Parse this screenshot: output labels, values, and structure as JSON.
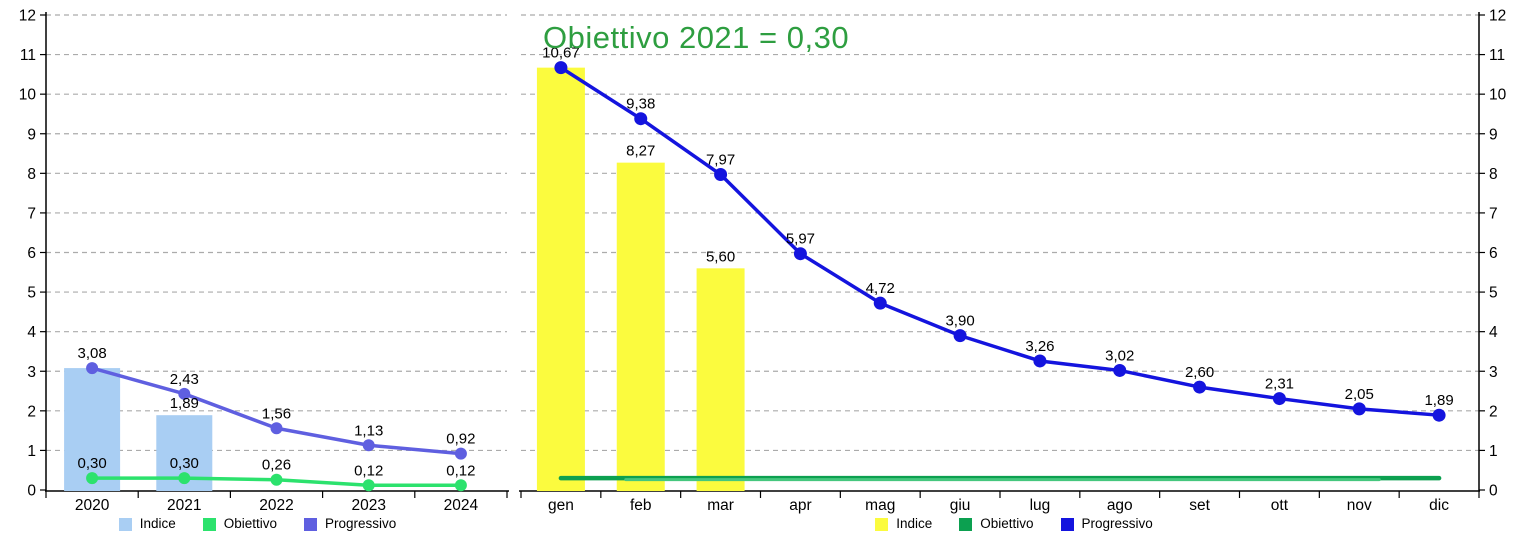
{
  "chart_data": [
    {
      "id": "yearly",
      "type": "combo-bar-line",
      "title": "",
      "categories": [
        "2020",
        "2021",
        "2022",
        "2023",
        "2024"
      ],
      "ylim": [
        0,
        12
      ],
      "yticks": [
        0,
        1,
        2,
        3,
        4,
        5,
        6,
        7,
        8,
        9,
        10,
        11,
        12
      ],
      "axis_side": "left",
      "grid": "dashed-horizontal",
      "legend_position": "bottom",
      "series": [
        {
          "name": "Indice",
          "type": "bar",
          "color": "#A9CEF3",
          "values": [
            3.08,
            1.89,
            null,
            null,
            null
          ],
          "labels": [
            "",
            "1,89",
            "",
            "",
            ""
          ]
        },
        {
          "name": "Obiettivo",
          "type": "line",
          "color": "#2CE26D",
          "width": 3.5,
          "values": [
            0.3,
            0.3,
            0.26,
            0.12,
            0.12
          ],
          "labels": [
            "0,30",
            "0,30",
            "0,26",
            "0,12",
            "0,12"
          ]
        },
        {
          "name": "Progressivo",
          "type": "line",
          "color": "#5F5FE0",
          "width": 3.5,
          "values": [
            3.08,
            2.43,
            1.56,
            1.13,
            0.92
          ],
          "labels": [
            "3,08",
            "2,43",
            "1,56",
            "1,13",
            "0,92"
          ]
        }
      ]
    },
    {
      "id": "monthly",
      "type": "combo-bar-line",
      "title": "Obiettivo 2021 = 0,30",
      "title_color": "#2E9E40",
      "categories": [
        "gen",
        "feb",
        "mar",
        "apr",
        "mag",
        "giu",
        "lug",
        "ago",
        "set",
        "ott",
        "nov",
        "dic"
      ],
      "ylim": [
        0,
        12
      ],
      "yticks": [
        0,
        1,
        2,
        3,
        4,
        5,
        6,
        7,
        8,
        9,
        10,
        11,
        12
      ],
      "axis_side": "right",
      "grid": "dashed-horizontal",
      "legend_position": "bottom",
      "series": [
        {
          "name": "Indice",
          "type": "bar",
          "color": "#FBFB3E",
          "values": [
            10.67,
            8.27,
            5.6,
            null,
            null,
            null,
            null,
            null,
            null,
            null,
            null,
            null
          ],
          "labels": [
            "",
            "8,27",
            "5,60",
            "",
            "",
            "",
            "",
            "",
            "",
            "",
            "",
            ""
          ]
        },
        {
          "name": "Obiettivo",
          "type": "line",
          "color": "#0CA050",
          "color_light": "#45C77E",
          "width": 4.5,
          "markers": false,
          "values": [
            0.3,
            0.3,
            0.3,
            0.3,
            0.3,
            0.3,
            0.3,
            0.3,
            0.3,
            0.3,
            0.3,
            0.3
          ],
          "labels": []
        },
        {
          "name": "Progressivo",
          "type": "line",
          "color": "#1414DE",
          "width": 3.5,
          "values": [
            10.67,
            9.38,
            7.97,
            5.97,
            4.72,
            3.9,
            3.26,
            3.02,
            2.6,
            2.31,
            2.05,
            1.89
          ],
          "labels": [
            "10,67",
            "9,38",
            "7,97",
            "5,97",
            "4,72",
            "3,90",
            "3,26",
            "3,02",
            "2,60",
            "2,31",
            "2,05",
            "1,89"
          ]
        }
      ]
    }
  ]
}
